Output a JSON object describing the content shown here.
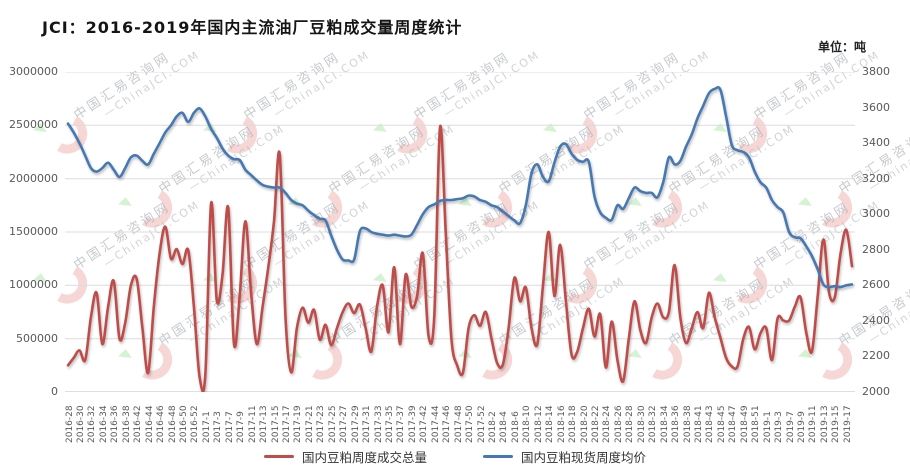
{
  "header": {
    "title": "JCI：2016-2019年国内主流油厂豆粕成交量周度统计",
    "unit_label": "单位：吨"
  },
  "watermark": {
    "cn": "中国汇易咨询网",
    "en": "ChinaJCI.COM"
  },
  "legend": [
    {
      "label": "国内豆粕周度成交总量",
      "color": "#bf4c49"
    },
    {
      "label": "国内豆粕现货周度均价",
      "color": "#4679b4"
    }
  ],
  "chart_data": {
    "type": "line",
    "title": "JCI：2016-2019年国内主流油厂豆粕成交量周度统计",
    "unit": "吨",
    "grid": true,
    "legend_position": "bottom",
    "points_per_label": 2,
    "x_labels": [
      "2016-28",
      "2016-30",
      "2016-32",
      "2016-34",
      "2016-36",
      "2016-38",
      "2016-42",
      "2016-44",
      "2016-46",
      "2016-48",
      "2016-50",
      "2016-52",
      "2017-1",
      "2017-3",
      "2017-7",
      "2017-9",
      "2017-11",
      "2017-13",
      "2017-15",
      "2017-17",
      "2017-19",
      "2017-21",
      "2017-23",
      "2017-25",
      "2017-27",
      "2017-29",
      "2017-31",
      "2017-33",
      "2017-35",
      "2017-37",
      "2017-39",
      "2017-42",
      "2017-44",
      "2017-46",
      "2017-48",
      "2017-50",
      "2017-52",
      "2018-2",
      "2018-4",
      "2018-6",
      "2018-10",
      "2018-12",
      "2018-14",
      "2018-16",
      "2018-18",
      "2018-20",
      "2018-22",
      "2018-24",
      "2018-26",
      "2018-28",
      "2018-30",
      "2018-32",
      "2018-34",
      "2018-36",
      "2018-38",
      "2018-41",
      "2018-43",
      "2018-45",
      "2018-47",
      "2018-49",
      "2018-51",
      "2019-1",
      "2019-3",
      "2019-7",
      "2019-9",
      "2019-11",
      "2019-13",
      "2019-15",
      "2019-17"
    ],
    "left_axis": {
      "min": 0,
      "max": 3000000,
      "step": 500000,
      "ticks": [
        "0",
        "500000",
        "1000000",
        "1500000",
        "2000000",
        "2500000",
        "3000000"
      ]
    },
    "right_axis": {
      "min": 2000,
      "max": 3800,
      "step": 200,
      "ticks": [
        "2000",
        "2200",
        "2400",
        "2600",
        "2800",
        "3000",
        "3200",
        "3400",
        "3600",
        "3800"
      ]
    },
    "series": [
      {
        "name": "国内豆粕周度成交总量",
        "axis": "left",
        "color": "#bf4c49",
        "values": [
          250000,
          320000,
          390000,
          300000,
          700000,
          930000,
          450000,
          800000,
          1040000,
          500000,
          650000,
          1000000,
          1060000,
          600000,
          180000,
          800000,
          1300000,
          1550000,
          1250000,
          1340000,
          1200000,
          1330000,
          800000,
          140000,
          160000,
          1770000,
          860000,
          1100000,
          1730000,
          450000,
          900000,
          1600000,
          930000,
          450000,
          800000,
          1170000,
          1600000,
          2230000,
          700000,
          185000,
          600000,
          790000,
          650000,
          770000,
          490000,
          630000,
          440000,
          600000,
          750000,
          830000,
          740000,
          820000,
          600000,
          380000,
          800000,
          1000000,
          560000,
          1170000,
          450000,
          1100000,
          800000,
          900000,
          1300000,
          530000,
          700000,
          2480000,
          1500000,
          500000,
          250000,
          180000,
          600000,
          720000,
          620000,
          750000,
          500000,
          270000,
          260000,
          600000,
          1070000,
          850000,
          980000,
          600000,
          450000,
          1000000,
          1500000,
          900000,
          1380000,
          850000,
          350000,
          380000,
          600000,
          780000,
          520000,
          730000,
          230000,
          660000,
          300000,
          100000,
          500000,
          850000,
          580000,
          460000,
          700000,
          830000,
          700000,
          750000,
          1190000,
          700000,
          460000,
          600000,
          750000,
          600000,
          930000,
          700000,
          510000,
          320000,
          240000,
          240000,
          500000,
          610000,
          400000,
          550000,
          600000,
          300000,
          690000,
          670000,
          670000,
          800000,
          890000,
          560000,
          380000,
          900000,
          1430000,
          930000,
          890000,
          1300000,
          1520000,
          1180000
        ]
      },
      {
        "name": "国内豆粕现货周度均价",
        "axis": "right",
        "color": "#4679b4",
        "values": [
          3510,
          3460,
          3400,
          3330,
          3260,
          3240,
          3260,
          3290,
          3250,
          3210,
          3260,
          3320,
          3330,
          3300,
          3280,
          3340,
          3400,
          3460,
          3500,
          3550,
          3570,
          3520,
          3570,
          3595,
          3550,
          3480,
          3430,
          3370,
          3330,
          3310,
          3305,
          3250,
          3220,
          3190,
          3165,
          3155,
          3150,
          3150,
          3120,
          3080,
          3060,
          3050,
          3020,
          2995,
          2975,
          2965,
          2880,
          2800,
          2745,
          2740,
          2745,
          2905,
          2920,
          2900,
          2890,
          2885,
          2880,
          2885,
          2880,
          2875,
          2885,
          2940,
          3000,
          3040,
          3055,
          3075,
          3080,
          3080,
          3085,
          3090,
          3105,
          3100,
          3080,
          3070,
          3050,
          3040,
          3015,
          2990,
          2965,
          2950,
          3050,
          3230,
          3280,
          3210,
          3185,
          3290,
          3380,
          3395,
          3340,
          3305,
          3295,
          3295,
          3100,
          3010,
          2980,
          2968,
          3050,
          3030,
          3090,
          3150,
          3130,
          3120,
          3120,
          3095,
          3180,
          3320,
          3280,
          3300,
          3380,
          3450,
          3540,
          3610,
          3680,
          3705,
          3700,
          3550,
          3390,
          3360,
          3350,
          3320,
          3240,
          3180,
          3150,
          3080,
          3040,
          3010,
          2900,
          2870,
          2865,
          2820,
          2765,
          2690,
          2605,
          2590,
          2595,
          2590,
          2600,
          2605
        ]
      }
    ]
  }
}
